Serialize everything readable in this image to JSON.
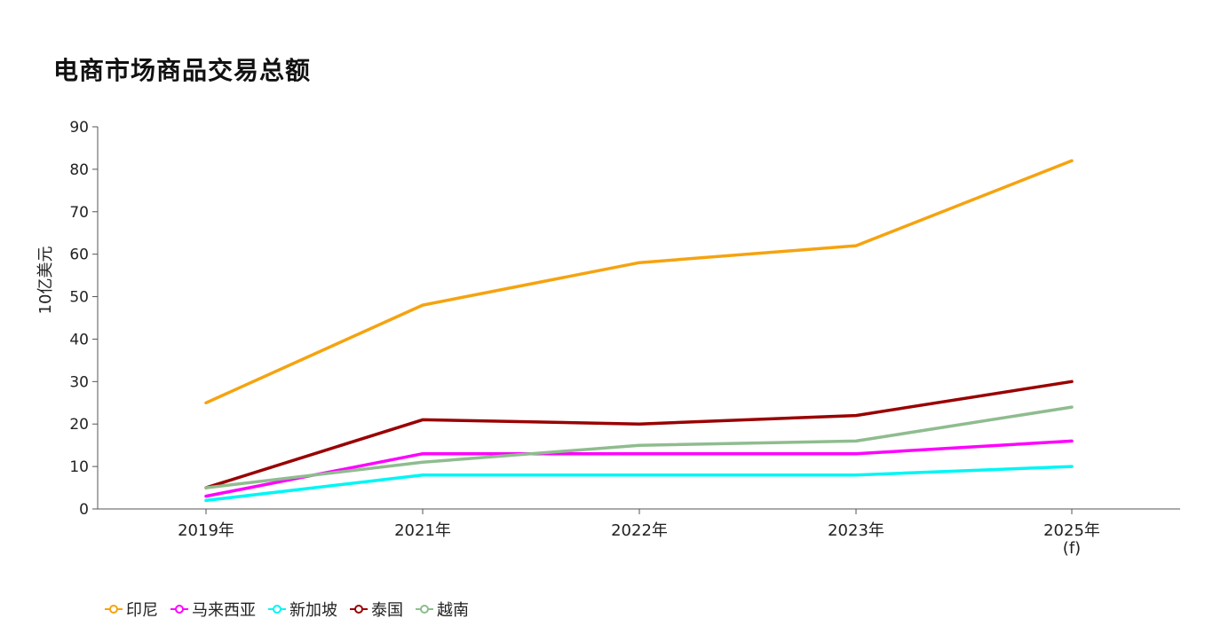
{
  "chart_data": {
    "type": "line",
    "title": "电商市场商品交易总额",
    "xlabel": "",
    "ylabel": "10亿美元",
    "ylim": [
      0,
      90
    ],
    "yticks": [
      0,
      10,
      20,
      30,
      40,
      50,
      60,
      70,
      80,
      90
    ],
    "categories": [
      "2019年",
      "2021年",
      "2022年",
      "2023年",
      "2025年"
    ],
    "category_sublabels": [
      "",
      "",
      "",
      "",
      "(f)"
    ],
    "legend_position": "bottom-left",
    "series": [
      {
        "name": "印尼",
        "color": "#F5A30F",
        "values": [
          25,
          48,
          58,
          62,
          82
        ]
      },
      {
        "name": "马来西亚",
        "color": "#FF00FF",
        "values": [
          3,
          13,
          13,
          13,
          16
        ]
      },
      {
        "name": "新加坡",
        "color": "#00F5F5",
        "values": [
          2,
          8,
          8,
          8,
          10
        ]
      },
      {
        "name": "泰国",
        "color": "#990000",
        "values": [
          5,
          21,
          20,
          22,
          30
        ]
      },
      {
        "name": "越南",
        "color": "#8FBC8F",
        "values": [
          5,
          11,
          15,
          16,
          24
        ]
      }
    ]
  }
}
